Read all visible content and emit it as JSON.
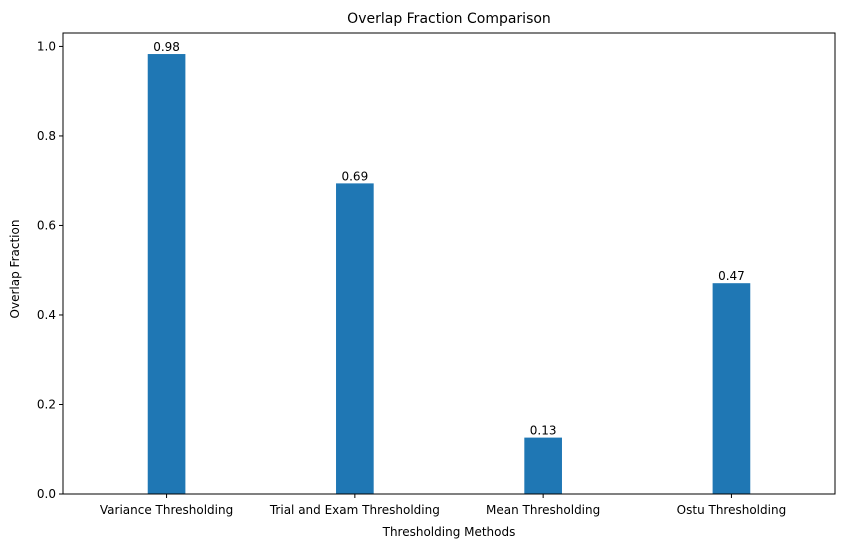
{
  "chart_data": {
    "type": "bar",
    "title": "Overlap Fraction Comparison",
    "xlabel": "Thresholding Methods",
    "ylabel": "Overlap Fraction",
    "categories": [
      "Variance Thresholding",
      "Trial and Exam Thresholding",
      "Mean Thresholding",
      "Ostu Thresholding"
    ],
    "values": [
      0.983,
      0.694,
      0.126,
      0.471
    ],
    "data_labels": [
      "0.98",
      "0.69",
      "0.13",
      "0.47"
    ],
    "ylim": [
      0,
      1.03
    ],
    "yticks": [
      "0.0",
      "0.2",
      "0.4",
      "0.6",
      "0.8",
      "1.0"
    ],
    "grid": false,
    "bar_color": "#1f77b4"
  }
}
